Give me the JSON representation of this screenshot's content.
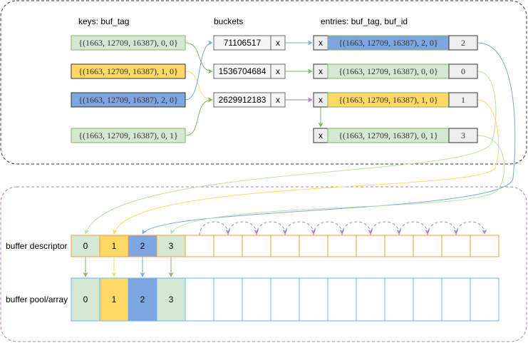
{
  "titles": {
    "keys": "keys: buf_tag",
    "buckets": "buckets",
    "entries": "entries: buf_tag, buf_id"
  },
  "keys": [
    {
      "label": "{(1663, 12709, 16387), 0, 0}",
      "color": "green"
    },
    {
      "label": "{(1663, 12709, 16387), 1, 0}",
      "color": "yellow"
    },
    {
      "label": "{(1663, 12709, 16387), 2, 0}",
      "color": "blue"
    },
    {
      "label": "{(1663, 12709, 16387), 0, 1}",
      "color": "green"
    }
  ],
  "buckets": [
    {
      "hash": "71106517",
      "link": "x"
    },
    {
      "hash": "1536704684",
      "link": "x"
    },
    {
      "hash": "2629912183",
      "link": "x"
    }
  ],
  "entries": [
    {
      "link": "x",
      "tag": "{(1663, 12709, 16387), 2, 0}",
      "buf_id": "2",
      "color": "blue"
    },
    {
      "link": "x",
      "tag": "{(1663, 12709, 16387), 0, 0}",
      "buf_id": "0",
      "color": "green"
    },
    {
      "link": "x",
      "tag": "{(1663, 12709, 16387), 1, 0}",
      "buf_id": "1",
      "color": "yellow"
    },
    {
      "link": "x",
      "tag": "{(1663, 12709, 16387), 0, 1}",
      "buf_id": "3",
      "color": "green"
    }
  ],
  "descriptor": {
    "label": "buffer descriptor",
    "cells": [
      "0",
      "1",
      "2",
      "3",
      "",
      "",
      "",
      "",
      "",
      "",
      "",
      "",
      "",
      "",
      ""
    ]
  },
  "pool": {
    "label": "buffer pool/array",
    "cells": [
      "0",
      "1",
      "2",
      "3",
      "",
      "",
      "",
      "",
      "",
      "",
      "",
      "",
      "",
      "",
      ""
    ]
  },
  "colors": {
    "green_fill": "#d5e8d4",
    "green_stroke": "#82b366",
    "yellow_fill": "#ffd966",
    "blue_fill": "#7ea6e0",
    "gray_fill": "#f5f5f5",
    "descriptor_stroke": "#ff9933",
    "pool_stroke": "#66b2ff",
    "freelist": "#a680b8"
  }
}
